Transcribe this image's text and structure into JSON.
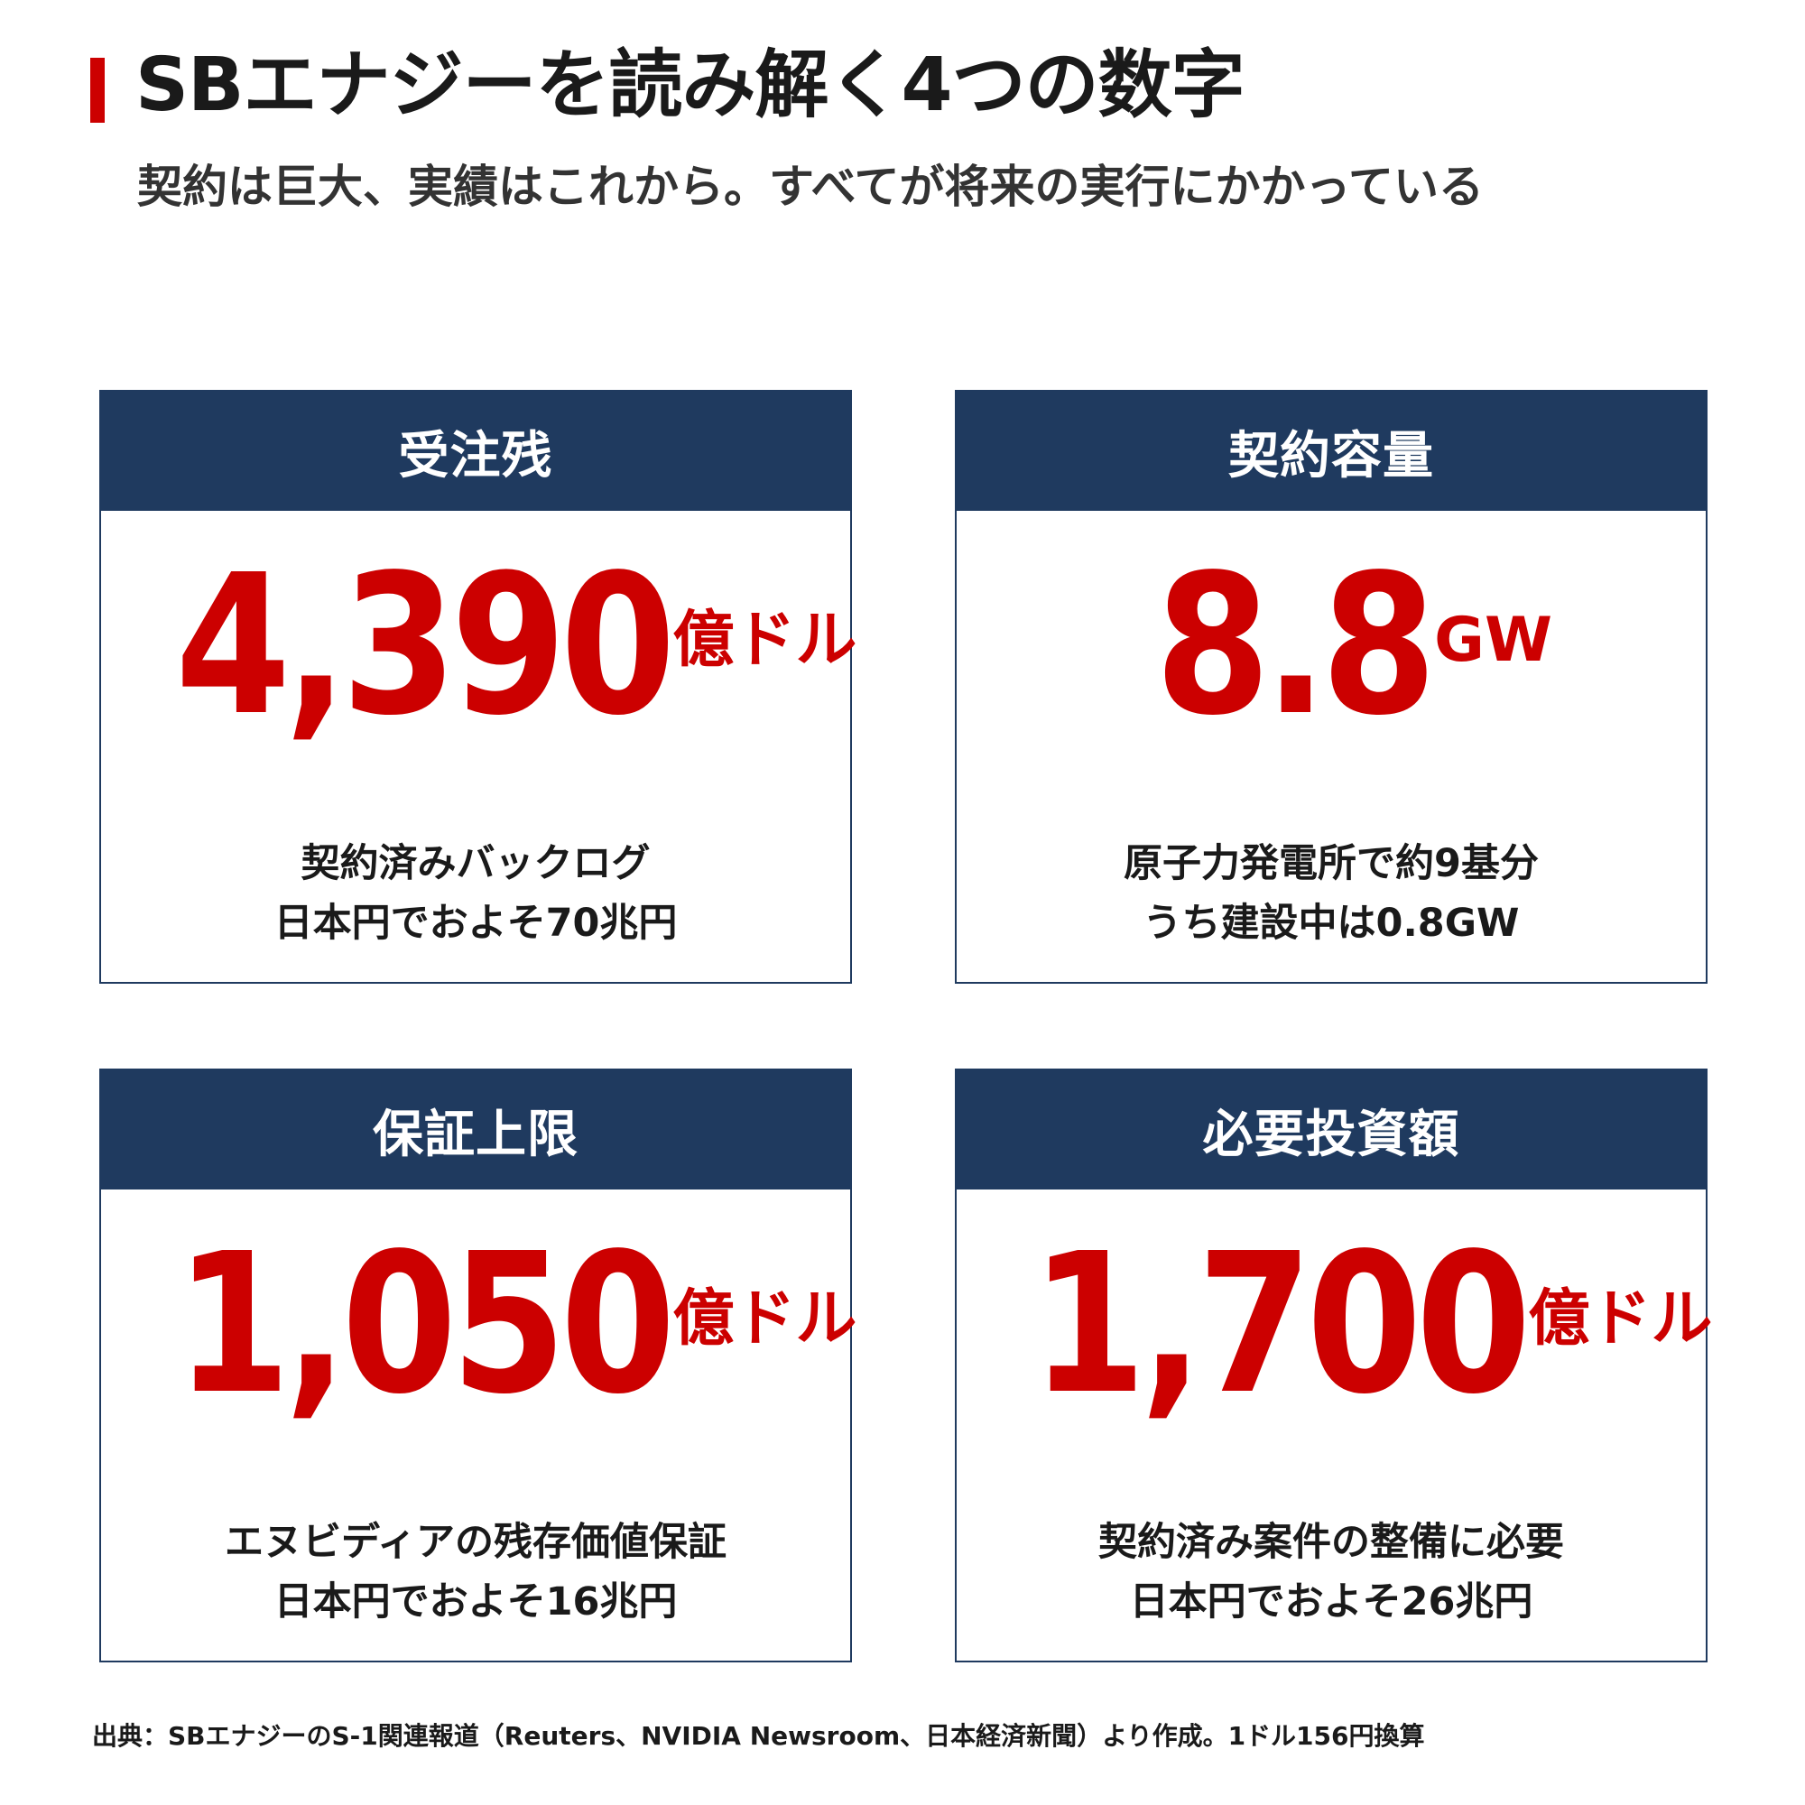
{
  "header": {
    "title": "SBエナジーを読み解く4つの数字",
    "subtitle": "契約は巨大、実績はこれから。すべてが将来の実行にかかっている"
  },
  "cards": [
    {
      "label": "受注残",
      "value": "4,390",
      "unit": "億ドル",
      "note_line1": "契約済みバックログ",
      "note_line2": "日本円でおよそ70兆円"
    },
    {
      "label": "契約容量",
      "value": "8.8",
      "unit": "GW",
      "note_line1": "原子力発電所で約9基分",
      "note_line2": "うち建設中は0.8GW"
    },
    {
      "label": "保証上限",
      "value": "1,050",
      "unit": "億ドル",
      "note_line1": "エヌビディアの残存価値保証",
      "note_line2": "日本円でおよそ16兆円"
    },
    {
      "label": "必要投資額",
      "value": "1,700",
      "unit": "億ドル",
      "note_line1": "契約済み案件の整備に必要",
      "note_line2": "日本円でおよそ26兆円"
    }
  ],
  "footer": {
    "source": "出典：SBエナジーのS-1関連報道（Reuters、NVIDIA Newsroom、日本経済新聞）より作成。1ドル156円換算"
  },
  "colors": {
    "accent_red": "#cc0000",
    "header_navy": "#1f3a5f",
    "text_dark": "#1a1a1a",
    "background": "#ffffff"
  }
}
